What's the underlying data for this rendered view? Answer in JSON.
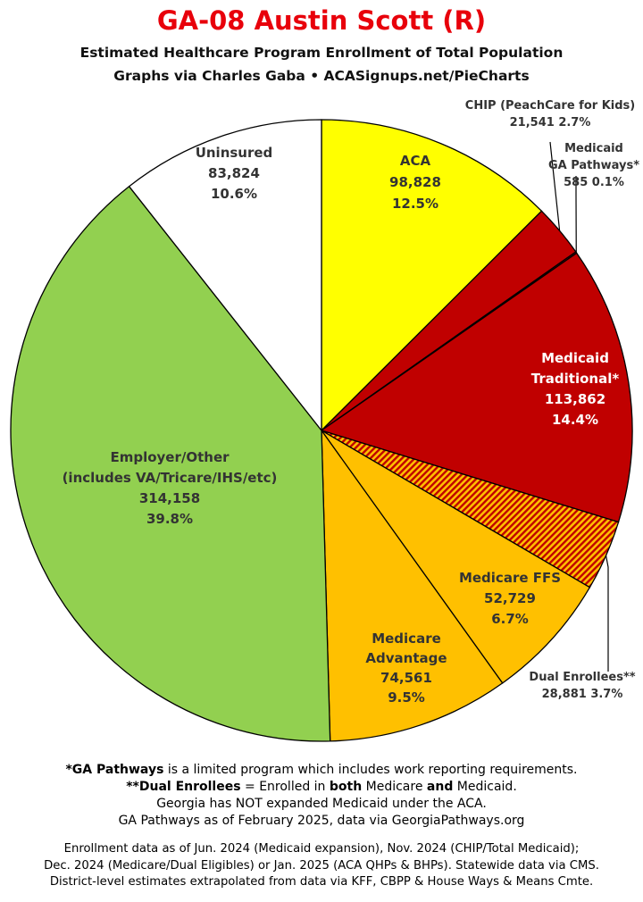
{
  "header": {
    "title": "GA-08 Austin Scott (R)",
    "subtitle1": "Estimated Healthcare Program Enrollment of Total Population",
    "subtitle2": "Graphs via Charles Gaba  •  ACASignups.net/PieCharts"
  },
  "chart_data": {
    "type": "pie",
    "title": "GA-08 Austin Scott (R)",
    "slices": [
      {
        "label": "ACA",
        "value": 98828,
        "percent": "12.5%",
        "color": "#ffff00",
        "label_lines": [
          "ACA",
          "98,828",
          "12.5%"
        ],
        "label_color": "#333333"
      },
      {
        "label": "CHIP (PeachCare for Kids)",
        "value": 21541,
        "percent": "2.7%",
        "color": "#c00000",
        "label_lines": [
          "CHIP (PeachCare for Kids)",
          "21,541 2.7%"
        ],
        "label_color": "#333333"
      },
      {
        "label": "Medicaid GA Pathways*",
        "value": 585,
        "percent": "0.1%",
        "color": "#c00000",
        "label_lines": [
          "Medicaid",
          "GA Pathways*",
          "585 0.1%"
        ],
        "label_color": "#333333"
      },
      {
        "label": "Medicaid Traditional*",
        "value": 113862,
        "percent": "14.4%",
        "color": "#c00000",
        "label_lines": [
          "Medicaid",
          "Traditional*",
          "113,862",
          "14.4%"
        ],
        "label_color": "#ffffff"
      },
      {
        "label": "Dual Enrollees**",
        "value": 28881,
        "percent": "3.7%",
        "color": "hatch",
        "label_lines": [
          "Dual Enrollees**",
          "28,881 3.7%"
        ],
        "label_color": "#333333"
      },
      {
        "label": "Medicare FFS",
        "value": 52729,
        "percent": "6.7%",
        "color": "#ffc000",
        "label_lines": [
          "Medicare FFS",
          "52,729",
          "6.7%"
        ],
        "label_color": "#333333"
      },
      {
        "label": "Medicare Advantage",
        "value": 74561,
        "percent": "9.5%",
        "color": "#ffc000",
        "label_lines": [
          "Medicare",
          "Advantage",
          "74,561",
          "9.5%"
        ],
        "label_color": "#333333"
      },
      {
        "label": "Employer/Other (includes VA/Tricare/IHS/etc)",
        "value": 314158,
        "percent": "39.8%",
        "color": "#92d050",
        "label_lines": [
          "Employer/Other",
          "(includes VA/Tricare/IHS/etc)",
          "314,158",
          "39.8%"
        ],
        "label_color": "#333333"
      },
      {
        "label": "Uninsured",
        "value": 83824,
        "percent": "10.6%",
        "color": "#ffffff",
        "label_lines": [
          "Uninsured",
          "83,824",
          "10.6%"
        ],
        "label_color": "#333333"
      }
    ]
  },
  "notes": {
    "line1_bold": "*GA Pathways",
    "line1_rest": " is a limited program which includes work reporting requirements.",
    "line2_bold": "**Dual Enrollees",
    "line2_mid1": " = Enrolled in ",
    "line2_b2": "both",
    "line2_mid2": " Medicare ",
    "line2_b3": "and",
    "line2_end": " Medicaid.",
    "line3": "Georgia has NOT expanded Medicaid under the ACA.",
    "line4": "GA Pathways as of February 2025, data via GeorgiaPathways.org"
  },
  "footer": {
    "line1": "Enrollment data as of Jun. 2024 (Medicaid expansion), Nov. 2024 (CHIP/Total Medicaid);",
    "line2": "Dec. 2024 (Medicare/Dual Eligibles) or Jan. 2025 (ACA QHPs & BHPs). Statewide data via CMS.",
    "line3": "District-level estimates extrapolated from data via KFF, CBPP & House Ways & Means Cmte."
  }
}
